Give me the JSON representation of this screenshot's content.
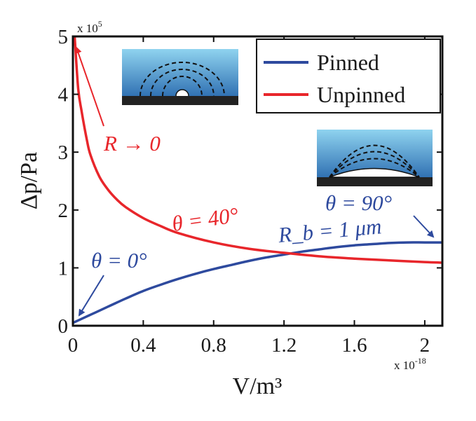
{
  "chart_data": {
    "type": "line",
    "xlabel": "V/m³",
    "ylabel": "Δp/Pa",
    "x_multiplier_label": "x 10",
    "x_multiplier_exp": "-18",
    "y_multiplier_label": "x 10",
    "y_multiplier_exp": "5",
    "xlim": [
      0,
      2.1
    ],
    "ylim": [
      0,
      5
    ],
    "x_ticks": [
      "0",
      "0.4",
      "0.8",
      "1.2",
      "1.6",
      "2"
    ],
    "x_tick_values": [
      0,
      0.4,
      0.8,
      1.2,
      1.6,
      2.0
    ],
    "y_ticks": [
      "0",
      "1",
      "2",
      "3",
      "4",
      "5"
    ],
    "y_tick_values": [
      0,
      1,
      2,
      3,
      4,
      5
    ],
    "grid": false,
    "legend_position": "top-right",
    "series": [
      {
        "name": "Pinned",
        "color": "#2e4a9e",
        "x": [
          0,
          0.1,
          0.2,
          0.3,
          0.4,
          0.5,
          0.6,
          0.7,
          0.8,
          0.9,
          1.0,
          1.1,
          1.2,
          1.3,
          1.4,
          1.5,
          1.6,
          1.7,
          1.8,
          1.9,
          2.0,
          2.1
        ],
        "y": [
          0.05,
          0.19,
          0.33,
          0.47,
          0.6,
          0.71,
          0.81,
          0.9,
          0.98,
          1.05,
          1.12,
          1.18,
          1.23,
          1.28,
          1.32,
          1.36,
          1.39,
          1.41,
          1.43,
          1.44,
          1.44,
          1.44
        ]
      },
      {
        "name": "Unpinned",
        "color": "#e8262b",
        "x": [
          0.01,
          0.03,
          0.05,
          0.08,
          0.1,
          0.15,
          0.2,
          0.25,
          0.3,
          0.4,
          0.5,
          0.6,
          0.8,
          1.0,
          1.2,
          1.4,
          1.6,
          1.8,
          2.0,
          2.1
        ],
        "y": [
          5.0,
          4.1,
          3.7,
          3.2,
          2.95,
          2.58,
          2.35,
          2.18,
          2.05,
          1.86,
          1.72,
          1.6,
          1.44,
          1.33,
          1.26,
          1.2,
          1.16,
          1.13,
          1.1,
          1.09
        ]
      }
    ],
    "annotations": [
      {
        "text": "R → 0",
        "color": "#e8262b"
      },
      {
        "text": "θ = 40°",
        "color": "#e8262b"
      },
      {
        "text": "θ = 0°",
        "color": "#2e4a9e"
      },
      {
        "text": "θ = 90°",
        "color": "#2e4a9e"
      },
      {
        "text": "R_b = 1 μm",
        "color": "#2e4a9e"
      }
    ]
  }
}
